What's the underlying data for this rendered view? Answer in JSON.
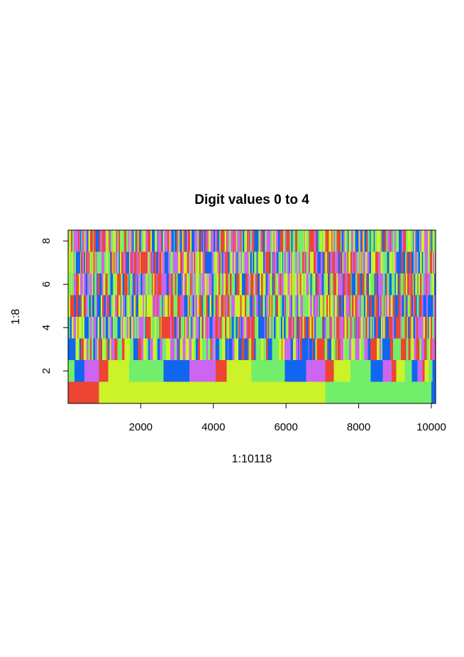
{
  "chart_data": {
    "type": "heatmap",
    "title": "Digit values 0 to 4",
    "xlabel": "1:10118",
    "ylabel": "1:8",
    "xlim": [
      1,
      10118
    ],
    "ylim": [
      0.5,
      8.5
    ],
    "x_ticks": [
      {
        "value": 2000,
        "label": "2000"
      },
      {
        "value": 4000,
        "label": "4000"
      },
      {
        "value": 6000,
        "label": "6000"
      },
      {
        "value": 8000,
        "label": "8000"
      },
      {
        "value": 10000,
        "label": "10000"
      }
    ],
    "y_ticks": [
      {
        "value": 2,
        "label": "2"
      },
      {
        "value": 4,
        "label": "4"
      },
      {
        "value": 6,
        "label": "6"
      },
      {
        "value": 8,
        "label": "8"
      }
    ],
    "palette": [
      "#EE4433",
      "#CCF22A",
      "#72EE6A",
      "#1066F0",
      "#CC66F0"
    ],
    "rows": {
      "1": [
        {
          "from": 1,
          "to": 850,
          "digit": 0
        },
        {
          "from": 850,
          "to": 7080,
          "digit": 1
        },
        {
          "from": 7080,
          "to": 10000,
          "digit": 2
        },
        {
          "from": 10000,
          "to": 10118,
          "digit": 3
        }
      ],
      "2": [
        {
          "from": 1,
          "to": 180,
          "digit": 2
        },
        {
          "from": 180,
          "to": 450,
          "digit": 3
        },
        {
          "from": 450,
          "to": 850,
          "digit": 4
        },
        {
          "from": 850,
          "to": 1100,
          "digit": 0
        },
        {
          "from": 1100,
          "to": 1680,
          "digit": 1
        },
        {
          "from": 1680,
          "to": 2630,
          "digit": 2
        },
        {
          "from": 2630,
          "to": 3340,
          "digit": 3
        },
        {
          "from": 3340,
          "to": 4060,
          "digit": 4
        },
        {
          "from": 4060,
          "to": 4370,
          "digit": 0
        },
        {
          "from": 4370,
          "to": 5050,
          "digit": 1
        },
        {
          "from": 5050,
          "to": 5970,
          "digit": 2
        },
        {
          "from": 5970,
          "to": 6550,
          "digit": 3
        },
        {
          "from": 6550,
          "to": 7080,
          "digit": 4
        },
        {
          "from": 7080,
          "to": 7320,
          "digit": 0
        },
        {
          "from": 7320,
          "to": 7770,
          "digit": 1
        },
        {
          "from": 7770,
          "to": 8330,
          "digit": 2
        },
        {
          "from": 8330,
          "to": 8660,
          "digit": 3
        },
        {
          "from": 8660,
          "to": 8910,
          "digit": 4
        },
        {
          "from": 8910,
          "to": 9030,
          "digit": 0
        },
        {
          "from": 9030,
          "to": 9270,
          "digit": 1
        },
        {
          "from": 9270,
          "to": 9460,
          "digit": 2
        },
        {
          "from": 9460,
          "to": 9620,
          "digit": 3
        },
        {
          "from": 9620,
          "to": 9760,
          "digit": 4
        },
        {
          "from": 9760,
          "to": 9820,
          "digit": 0
        },
        {
          "from": 9820,
          "to": 9930,
          "digit": 1
        },
        {
          "from": 9930,
          "to": 10030,
          "digit": 2
        },
        {
          "from": 10030,
          "to": 10118,
          "digit": 3
        }
      ]
    },
    "noise_rows": [
      3,
      4,
      5,
      6,
      7,
      8
    ]
  }
}
